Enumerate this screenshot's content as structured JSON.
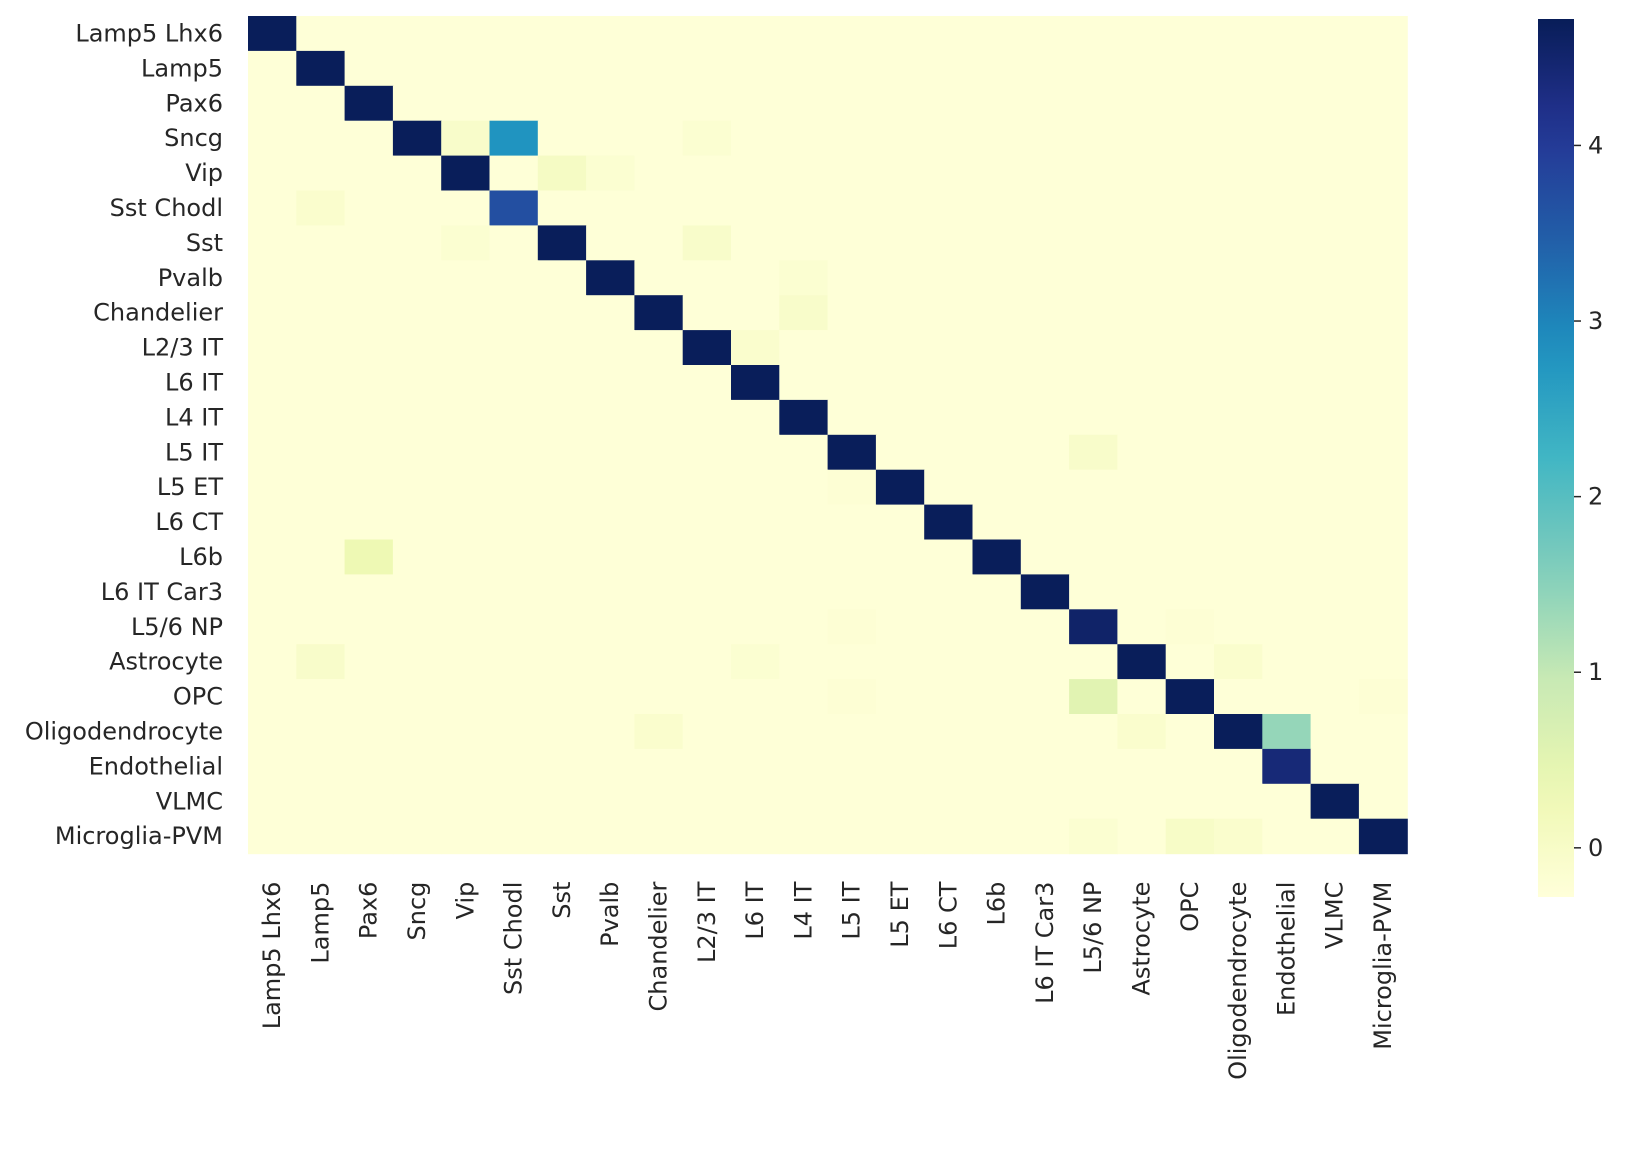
{
  "chart_data": {
    "type": "heatmap",
    "title": "",
    "xlabel": "",
    "ylabel": "",
    "categories_x": [
      "Lamp5 Lhx6",
      "Lamp5",
      "Pax6",
      "Sncg",
      "Vip",
      "Sst Chodl",
      "Sst",
      "Pvalb",
      "Chandelier",
      "L2/3 IT",
      "L6 IT",
      "L4 IT",
      "L5 IT",
      "L5 ET",
      "L6 CT",
      "L6b",
      "L6 IT Car3",
      "L5/6 NP",
      "Astrocyte",
      "OPC",
      "Oligodendrocyte",
      "Endothelial",
      "VLMC",
      "Microglia-PVM"
    ],
    "categories_y": [
      "Lamp5 Lhx6",
      "Lamp5",
      "Pax6",
      "Sncg",
      "Vip",
      "Sst Chodl",
      "Sst",
      "Pvalb",
      "Chandelier",
      "L2/3 IT",
      "L6 IT",
      "L4 IT",
      "L5 IT",
      "L5 ET",
      "L6 CT",
      "L6b",
      "L6 IT Car3",
      "L5/6 NP",
      "Astrocyte",
      "OPC",
      "Oligodendrocyte",
      "Endothelial",
      "VLMC",
      "Microglia-PVM"
    ],
    "values": [
      [
        4.7,
        -0.25,
        -0.25,
        -0.25,
        -0.25,
        -0.25,
        -0.25,
        -0.25,
        -0.25,
        -0.25,
        -0.25,
        -0.25,
        -0.25,
        -0.25,
        -0.25,
        -0.25,
        -0.25,
        -0.25,
        -0.25,
        -0.25,
        -0.25,
        -0.25,
        -0.25,
        -0.25
      ],
      [
        -0.25,
        4.7,
        -0.25,
        -0.25,
        -0.25,
        -0.25,
        -0.25,
        -0.25,
        -0.25,
        -0.25,
        -0.25,
        -0.25,
        -0.25,
        -0.25,
        -0.25,
        -0.25,
        -0.25,
        -0.25,
        -0.25,
        -0.25,
        -0.25,
        -0.25,
        -0.25,
        -0.25
      ],
      [
        -0.25,
        -0.25,
        4.7,
        -0.25,
        -0.25,
        -0.25,
        -0.25,
        -0.25,
        -0.25,
        -0.25,
        -0.25,
        -0.25,
        -0.25,
        -0.25,
        -0.25,
        -0.25,
        -0.25,
        -0.25,
        -0.25,
        -0.25,
        -0.25,
        -0.25,
        -0.25,
        -0.25
      ],
      [
        -0.25,
        -0.25,
        -0.25,
        4.7,
        -0.05,
        2.8,
        -0.25,
        -0.25,
        -0.25,
        -0.15,
        -0.25,
        -0.25,
        -0.25,
        -0.25,
        -0.25,
        -0.25,
        -0.25,
        -0.25,
        -0.25,
        -0.25,
        -0.25,
        -0.25,
        -0.25,
        -0.25
      ],
      [
        -0.25,
        -0.25,
        -0.25,
        -0.25,
        4.7,
        -0.25,
        0.05,
        -0.15,
        -0.25,
        -0.25,
        -0.25,
        -0.25,
        -0.25,
        -0.25,
        -0.25,
        -0.25,
        -0.25,
        -0.25,
        -0.25,
        -0.25,
        -0.25,
        -0.25,
        -0.25,
        -0.25
      ],
      [
        -0.25,
        -0.1,
        -0.25,
        -0.25,
        -0.25,
        3.7,
        -0.25,
        -0.25,
        -0.25,
        -0.25,
        -0.25,
        -0.25,
        -0.25,
        -0.25,
        -0.25,
        -0.25,
        -0.25,
        -0.25,
        -0.25,
        -0.25,
        -0.25,
        -0.25,
        -0.25,
        -0.25
      ],
      [
        -0.25,
        -0.25,
        -0.25,
        -0.25,
        -0.15,
        -0.25,
        4.7,
        -0.25,
        -0.25,
        -0.05,
        -0.25,
        -0.25,
        -0.25,
        -0.25,
        -0.25,
        -0.25,
        -0.25,
        -0.25,
        -0.25,
        -0.25,
        -0.25,
        -0.25,
        -0.25,
        -0.25
      ],
      [
        -0.25,
        -0.25,
        -0.25,
        -0.25,
        -0.25,
        -0.25,
        -0.25,
        4.7,
        -0.25,
        -0.25,
        -0.25,
        -0.15,
        -0.25,
        -0.25,
        -0.25,
        -0.25,
        -0.25,
        -0.25,
        -0.25,
        -0.25,
        -0.25,
        -0.25,
        -0.25,
        -0.25
      ],
      [
        -0.25,
        -0.25,
        -0.25,
        -0.25,
        -0.25,
        -0.25,
        -0.25,
        -0.25,
        4.7,
        -0.25,
        -0.25,
        -0.05,
        -0.25,
        -0.25,
        -0.25,
        -0.25,
        -0.25,
        -0.25,
        -0.25,
        -0.25,
        -0.25,
        -0.25,
        -0.25,
        -0.25
      ],
      [
        -0.25,
        -0.25,
        -0.25,
        -0.25,
        -0.25,
        -0.25,
        -0.25,
        -0.25,
        -0.25,
        4.7,
        -0.1,
        -0.25,
        -0.25,
        -0.25,
        -0.25,
        -0.25,
        -0.25,
        -0.25,
        -0.25,
        -0.25,
        -0.25,
        -0.25,
        -0.25,
        -0.25
      ],
      [
        -0.25,
        -0.25,
        -0.25,
        -0.25,
        -0.25,
        -0.25,
        -0.25,
        -0.25,
        -0.25,
        -0.25,
        4.7,
        -0.25,
        -0.25,
        -0.25,
        -0.25,
        -0.25,
        -0.25,
        -0.25,
        -0.25,
        -0.25,
        -0.25,
        -0.25,
        -0.25,
        -0.25
      ],
      [
        -0.25,
        -0.25,
        -0.25,
        -0.25,
        -0.25,
        -0.25,
        -0.25,
        -0.25,
        -0.25,
        -0.25,
        -0.25,
        4.7,
        -0.25,
        -0.25,
        -0.25,
        -0.25,
        -0.25,
        -0.25,
        -0.25,
        -0.25,
        -0.25,
        -0.25,
        -0.25,
        -0.25
      ],
      [
        -0.25,
        -0.25,
        -0.25,
        -0.25,
        -0.25,
        -0.25,
        -0.25,
        -0.25,
        -0.25,
        -0.25,
        -0.25,
        -0.25,
        4.7,
        -0.25,
        -0.25,
        -0.25,
        -0.25,
        -0.05,
        -0.25,
        -0.25,
        -0.25,
        -0.25,
        -0.25,
        -0.25
      ],
      [
        -0.25,
        -0.25,
        -0.25,
        -0.25,
        -0.25,
        -0.25,
        -0.25,
        -0.25,
        -0.25,
        -0.25,
        -0.25,
        -0.25,
        -0.2,
        4.7,
        -0.25,
        -0.25,
        -0.25,
        -0.25,
        -0.25,
        -0.25,
        -0.25,
        -0.25,
        -0.25,
        -0.25
      ],
      [
        -0.25,
        -0.25,
        -0.25,
        -0.25,
        -0.25,
        -0.25,
        -0.25,
        -0.25,
        -0.25,
        -0.25,
        -0.25,
        -0.25,
        -0.25,
        -0.25,
        4.7,
        -0.25,
        -0.25,
        -0.25,
        -0.25,
        -0.25,
        -0.25,
        -0.25,
        -0.25,
        -0.25
      ],
      [
        -0.25,
        -0.25,
        0.3,
        -0.25,
        -0.25,
        -0.25,
        -0.25,
        -0.25,
        -0.25,
        -0.25,
        -0.25,
        -0.25,
        -0.25,
        -0.25,
        -0.25,
        4.7,
        -0.25,
        -0.25,
        -0.25,
        -0.25,
        -0.25,
        -0.25,
        -0.25,
        -0.25
      ],
      [
        -0.25,
        -0.25,
        -0.25,
        -0.25,
        -0.25,
        -0.25,
        -0.25,
        -0.25,
        -0.25,
        -0.25,
        -0.25,
        -0.25,
        -0.25,
        -0.25,
        -0.25,
        -0.25,
        4.7,
        -0.25,
        -0.25,
        -0.25,
        -0.25,
        -0.25,
        -0.25,
        -0.25
      ],
      [
        -0.25,
        -0.25,
        -0.25,
        -0.25,
        -0.25,
        -0.25,
        -0.25,
        -0.25,
        -0.25,
        -0.25,
        -0.25,
        -0.25,
        -0.2,
        -0.25,
        -0.25,
        -0.25,
        -0.25,
        4.55,
        -0.25,
        -0.2,
        -0.25,
        -0.25,
        -0.25,
        -0.25
      ],
      [
        -0.25,
        -0.05,
        -0.25,
        -0.25,
        -0.25,
        -0.25,
        -0.25,
        -0.25,
        -0.25,
        -0.25,
        -0.15,
        -0.25,
        -0.25,
        -0.25,
        -0.25,
        -0.25,
        -0.25,
        -0.25,
        4.7,
        -0.25,
        -0.1,
        -0.25,
        -0.25,
        -0.25
      ],
      [
        -0.25,
        -0.25,
        -0.25,
        -0.25,
        -0.25,
        -0.25,
        -0.25,
        -0.25,
        -0.25,
        -0.25,
        -0.25,
        -0.25,
        -0.2,
        -0.25,
        -0.25,
        -0.25,
        -0.25,
        0.55,
        -0.25,
        4.7,
        -0.25,
        -0.25,
        -0.25,
        -0.2
      ],
      [
        -0.25,
        -0.25,
        -0.25,
        -0.25,
        -0.25,
        -0.25,
        -0.25,
        -0.25,
        -0.1,
        -0.25,
        -0.25,
        -0.25,
        -0.25,
        -0.25,
        -0.25,
        -0.25,
        -0.25,
        -0.25,
        -0.1,
        -0.25,
        4.7,
        1.4,
        -0.25,
        -0.25
      ],
      [
        -0.25,
        -0.25,
        -0.25,
        -0.25,
        -0.25,
        -0.25,
        -0.25,
        -0.25,
        -0.25,
        -0.25,
        -0.25,
        -0.25,
        -0.25,
        -0.25,
        -0.25,
        -0.25,
        -0.25,
        -0.25,
        -0.25,
        -0.25,
        -0.25,
        4.4,
        -0.25,
        -0.25
      ],
      [
        -0.25,
        -0.25,
        -0.25,
        -0.25,
        -0.25,
        -0.25,
        -0.25,
        -0.25,
        -0.25,
        -0.25,
        -0.25,
        -0.25,
        -0.25,
        -0.25,
        -0.25,
        -0.25,
        -0.25,
        -0.25,
        -0.25,
        -0.25,
        -0.25,
        -0.25,
        4.7,
        -0.25
      ],
      [
        -0.25,
        -0.25,
        -0.25,
        -0.25,
        -0.25,
        -0.25,
        -0.25,
        -0.25,
        -0.25,
        -0.25,
        -0.25,
        -0.25,
        -0.25,
        -0.25,
        -0.25,
        -0.25,
        -0.25,
        -0.15,
        -0.25,
        0.0,
        -0.1,
        -0.25,
        -0.25,
        4.7
      ]
    ],
    "colormap": "YlGnBu",
    "vmin": -0.28,
    "vmax": 4.72,
    "colorbar_ticks": [
      0,
      1,
      2,
      3,
      4
    ],
    "colorbar_tick_labels": [
      "0",
      "1",
      "2",
      "3",
      "4"
    ],
    "grid": false,
    "legend": "colorbar-right"
  }
}
